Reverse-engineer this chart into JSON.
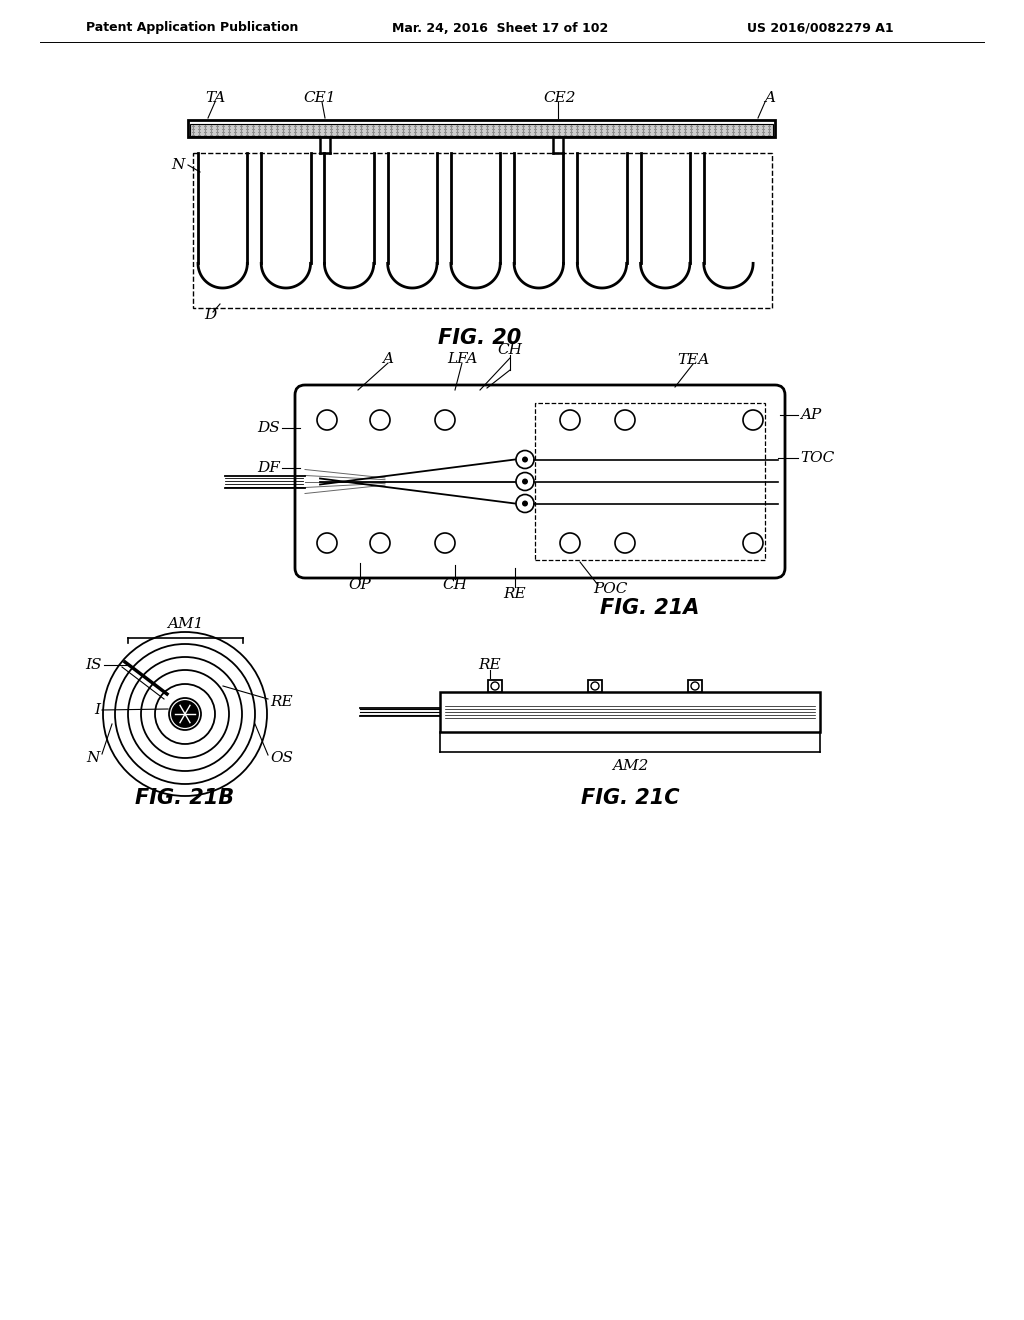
{
  "header_left": "Patent Application Publication",
  "header_mid": "Mar. 24, 2016  Sheet 17 of 102",
  "header_right": "US 2016/0082279 A1",
  "fig20_label": "FIG. 20",
  "fig21a_label": "FIG. 21A",
  "fig21b_label": "FIG. 21B",
  "fig21c_label": "FIG. 21C",
  "bg_color": "#ffffff",
  "line_color": "#000000"
}
